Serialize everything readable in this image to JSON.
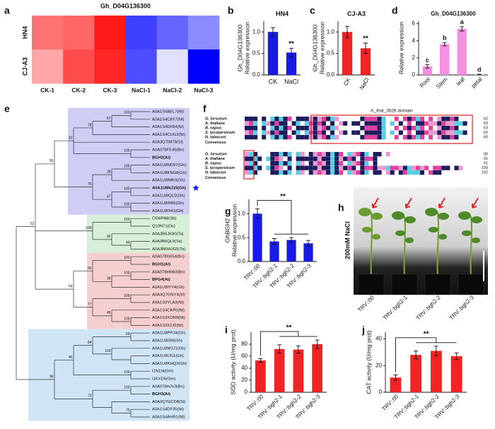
{
  "chart_data": [
    {
      "type": "heatmap",
      "panel": "a",
      "title": "Gh_D04G136300",
      "rows": [
        "HN4",
        "CJ-A3"
      ],
      "columns": [
        "CK-1",
        "CK-2",
        "CK-3",
        "NaCl-1",
        "NaCl-2",
        "NaCl-3"
      ],
      "values": [
        [
          0.55,
          0.6,
          0.9,
          -0.75,
          -0.6,
          -0.45
        ],
        [
          0.35,
          0.7,
          0.85,
          -0.7,
          -0.12,
          -1.0
        ]
      ],
      "zlim": [
        -1,
        1
      ],
      "low_color": "#0000ff",
      "high_color": "#ff0000"
    },
    {
      "type": "bar",
      "panel": "b",
      "title": "HN4",
      "ylabel": [
        "Gh_D04G136300",
        "Relative expression"
      ],
      "categories": [
        "CK",
        "NaCl"
      ],
      "values": [
        1.0,
        0.52
      ],
      "errors": [
        0.1,
        0.1
      ],
      "color": "#1a1ae6",
      "ylim": [
        0,
        1.25
      ],
      "yticks": [
        {
          "value": 0,
          "label": "0.0"
        },
        {
          "value": 0.5,
          "label": "0.5"
        },
        {
          "value": 1,
          "label": "1.0"
        }
      ],
      "annotation": "**"
    },
    {
      "type": "bar",
      "panel": "c",
      "title": "CJ-A3",
      "ylabel": [
        "Gh_D04G136300",
        "Relative expression"
      ],
      "categories": [
        "CK",
        "NaCl"
      ],
      "values": [
        1.0,
        0.62
      ],
      "errors": [
        0.13,
        0.12
      ],
      "color": "#f02424",
      "ylim": [
        0,
        1.25
      ],
      "yticks": [
        {
          "value": 0,
          "label": "0.0"
        },
        {
          "value": 0.5,
          "label": "0.5"
        },
        {
          "value": 1,
          "label": "1.0"
        }
      ],
      "annotation": "**"
    },
    {
      "type": "bar",
      "panel": "d",
      "title": "Gh_D04G136300",
      "ylabel": [
        "Relative expression"
      ],
      "categories": [
        "Root",
        "Stem",
        "leaf",
        "petal"
      ],
      "values": [
        1.0,
        3.6,
        5.4,
        0.05
      ],
      "errors": [
        0.2,
        0.2,
        0.25,
        0.03
      ],
      "letters": [
        "c",
        "b",
        "a",
        "d"
      ],
      "color": "#f58fe0",
      "ylim": [
        0,
        6.3
      ],
      "yticks": [
        0,
        2,
        4,
        6
      ]
    },
    {
      "type": "bar",
      "panel": "g",
      "ylabel": [
        "GhBGH2",
        "Relative expression"
      ],
      "categories": [
        "TRV::00",
        "TRV::bgh2-1",
        "TRV::bgh2-2",
        "TRV::bgh2-3"
      ],
      "values": [
        1.0,
        0.42,
        0.45,
        0.38
      ],
      "errors": [
        0.1,
        0.06,
        0.05,
        0.06
      ],
      "color": "#1a1ae6",
      "ylim": [
        0,
        1.3
      ],
      "yticks": [
        {
          "value": 0,
          "label": "0.0"
        },
        {
          "value": 0.5,
          "label": "0.5"
        },
        {
          "value": 1,
          "label": "1.0"
        }
      ],
      "annotation": "**"
    },
    {
      "type": "bar",
      "panel": "i",
      "ylabel": [
        "SOD activity (U/mg prot)"
      ],
      "categories": [
        "TRV::00",
        "TRV::bgh2-1",
        "TRV::bgh2-2",
        "TRV::bgh2-3"
      ],
      "values": [
        53,
        72,
        71,
        80
      ],
      "errors": [
        3,
        7,
        6,
        7
      ],
      "color": "#f02424",
      "ylim": [
        0,
        100
      ],
      "yticks": [
        0,
        20,
        40,
        60,
        80
      ],
      "annotation": "**"
    },
    {
      "type": "bar",
      "panel": "j",
      "ylabel": [
        "CAT activity (U/mg prot)"
      ],
      "categories": [
        "TRV::00",
        "TRV::bgh2-1",
        "TRV::bgh2-2",
        "TRV::bgh2-3"
      ],
      "values": [
        11,
        28,
        31,
        27
      ],
      "errors": [
        2,
        3,
        3.5,
        2.5
      ],
      "color": "#f02424",
      "ylim": [
        0,
        45
      ],
      "yticks": [
        0,
        20,
        40
      ],
      "annotation": "**"
    }
  ],
  "tree": {
    "panel": "e",
    "root": {
      "children": [
        {
          "support": 52,
          "children": [
            {
              "support": 56,
              "children": [
                {
                  "support": 42,
                  "children": [
                    {
                      "support": 78,
                      "children": [
                        {
                          "support": 67,
                          "children": [
                            {
                              "support": 100,
                              "children": [
                                {
                                  "name": "A0A1S4AEL7(Nt)"
                                },
                                {
                                  "name": "A0A1S4C8Y7(Nt)"
                                }
                              ]
                            },
                            {
                              "name": "A0A1S4DF84(Nt)"
                            }
                          ]
                        },
                        {
                          "name": "A0A1S4CUG3(Nt)"
                        }
                      ]
                    },
                    {
                      "name": "A0A3Q7IM78(Sl)"
                    },
                    {
                      "support": 100,
                      "children": [
                        {
                          "name": "A0A078FE45(Bn)"
                        },
                        {
                          "name": "BGH2(At)",
                          "color": "#e02020"
                        }
                      ]
                    }
                  ]
                },
                {
                  "support": 75,
                  "children": [
                    {
                      "support": 28,
                      "children": [
                        {
                          "support": 100,
                          "children": [
                            {
                              "name": "A0A1U8ND97(Gh)"
                            },
                            {
                              "name": "A0A1U8KNG8(Gh)"
                            }
                          ]
                        },
                        {
                          "name": "A0A1U8IMK0(Gh)"
                        }
                      ]
                    },
                    {
                      "support": 47,
                      "children": [
                        {
                          "support": 100,
                          "children": [
                            {
                              "name": "A0A1U8NJ15(Gh)",
                              "color": "#1a1ae6"
                            },
                            {
                              "name": "A0A1U8IQU2(Gh)"
                            }
                          ]
                        },
                        {
                          "support": 100,
                          "children": [
                            {
                              "name": "A0A1U8I5B6(Gh)"
                            },
                            {
                              "name": "A0A1U8I241(Gh)"
                            }
                          ]
                        }
                      ]
                    }
                  ]
                }
              ]
            },
            {
              "support": 100,
              "children": [
                {
                  "support": 100,
                  "children": [
                    {
                      "name": "C5WPA8(Sb)"
                    },
                    {
                      "name": "Q10N71(Os)"
                    }
                  ]
                },
                {
                  "support": 92,
                  "children": [
                    {
                      "name": "A0A3B6JK80(Ta)"
                    },
                    {
                      "support": 44,
                      "children": [
                        {
                          "name": "A0A3B6QL9(Ta)"
                        },
                        {
                          "name": "A0A3B6HUG5(Ta)"
                        }
                      ]
                    }
                  ]
                }
              ]
            },
            {
              "support": 54,
              "children": [
                {
                  "support": 92,
                  "children": [
                    {
                      "support": 100,
                      "children": [
                        {
                          "name": "A0A078G654(Bn)"
                        },
                        {
                          "name": "BGH1(At)",
                          "color": "#e02020"
                        }
                      ]
                    },
                    {
                      "support": 30,
                      "children": [
                        {
                          "support": 100,
                          "children": [
                            {
                              "name": "A0A078HR83(Bn)"
                            },
                            {
                              "name": "BPG4(At)",
                              "color": "#e02020"
                            }
                          ]
                        },
                        {
                          "name": "A0A1U8IYY4(Gh)"
                        }
                      ]
                    }
                  ]
                },
                {
                  "support": 77,
                  "children": [
                    {
                      "support": 100,
                      "children": [
                        {
                          "name": "A0A3Q7GNY4(Sl)"
                        },
                        {
                          "name": "A0A1S3YLA3(Nt)"
                        }
                      ]
                    },
                    {
                      "support": 45,
                      "children": [
                        {
                          "name": "A0A1S4CKP0(Nt)"
                        },
                        {
                          "support": 100,
                          "children": [
                            {
                              "name": "A0A1S3XON9(Nt)"
                            },
                            {
                              "name": "A0A1S3X2J2(Nt)"
                            }
                          ]
                        }
                      ]
                    }
                  ]
                }
              ]
            }
          ]
        },
        {
          "support": 99,
          "children": [
            {
              "support": 46,
              "children": [
                {
                  "support": 84,
                  "children": [
                    {
                      "support": 69,
                      "children": [
                        {
                          "name": "A0A1U8PPJ4(Gh)"
                        },
                        {
                          "name": "A0A1U8I3I9(Gh)"
                        }
                      ]
                    },
                    {
                      "support": 100,
                      "children": [
                        {
                          "name": "A0A1U8M2J1(Gh)"
                        },
                        {
                          "children": [
                            {
                              "name": "A0A1U8IJS1(Gh)"
                            },
                            {
                              "name": "A0A1U8KHQ3(Gh)"
                            }
                          ]
                        }
                      ]
                    }
                  ]
                },
                {
                  "support": 100,
                  "children": [
                    {
                      "name": "I1N1I4(Gm)"
                    },
                    {
                      "name": "I1KXD5(Gm)"
                    }
                  ]
                }
              ]
            },
            {
              "support": 73,
              "children": [
                {
                  "support": 100,
                  "children": [
                    {
                      "name": "A0A078HJV3(Bn)"
                    },
                    {
                      "name": "BGH3(At)",
                      "color": "#e02020"
                    }
                  ]
                },
                {
                  "children": [
                    {
                      "name": "A0A3Q7GCD8(Sl)"
                    },
                    {
                      "support": 75,
                      "children": [
                        {
                          "name": "A0A1S4DF35(Nt)"
                        },
                        {
                          "name": "A0A1S4AHR1(Nt)"
                        }
                      ]
                    }
                  ]
                }
              ]
            }
          ]
        }
      ]
    }
  },
  "alignment": {
    "panel": "f",
    "domain": "A_thal_3526 domain",
    "species": [
      "G. hirsutum",
      "A. thaliana",
      "B. napus",
      "S. lycopersicum",
      "N. tabacum"
    ],
    "consensus": "Consensus",
    "ends": [
      [
        62,
        63,
        63,
        62,
        60
      ],
      [
        90,
        91,
        91,
        109,
        102
      ]
    ]
  },
  "photo": {
    "panel": "h",
    "treatment": "200mM NaCl",
    "labels": [
      "TRV::00",
      "TRV::bgh2-1",
      "TRV::bgh2-2",
      "TRV::bgh2-3"
    ]
  }
}
